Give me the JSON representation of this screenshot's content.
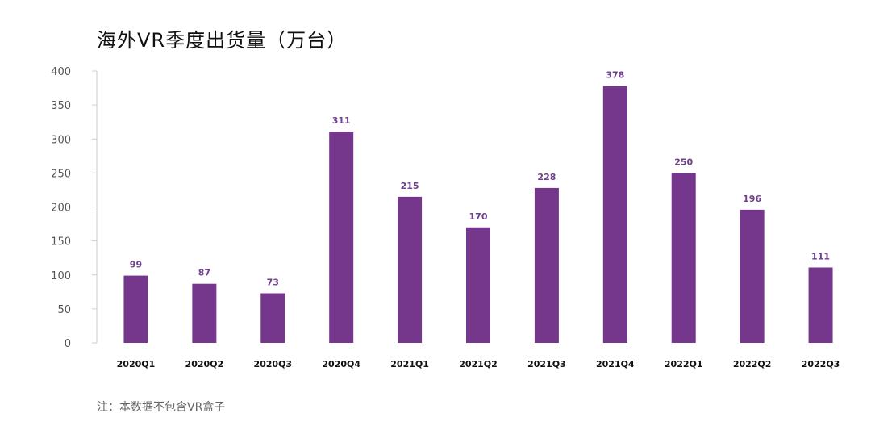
{
  "chart_data": {
    "type": "bar",
    "title": "海外VR季度出货量（万台）",
    "categories": [
      "2020Q1",
      "2020Q2",
      "2020Q3",
      "2020Q4",
      "2021Q1",
      "2021Q2",
      "2021Q3",
      "2021Q4",
      "2022Q1",
      "2022Q2",
      "2022Q3"
    ],
    "values": [
      99,
      87,
      73,
      311,
      215,
      170,
      228,
      378,
      250,
      196,
      111
    ],
    "data_labels": [
      "99",
      "87",
      "73",
      "311",
      "215",
      "170",
      "228",
      "378",
      "250",
      "196",
      "111"
    ],
    "ylim": [
      0,
      400
    ],
    "yticks": [
      0,
      50,
      100,
      150,
      200,
      250,
      300,
      350,
      400
    ],
    "xlabel": "",
    "ylabel": "",
    "grid": false,
    "bar_color": "#74378b",
    "note": "注：本数据不包含VR盒子"
  }
}
